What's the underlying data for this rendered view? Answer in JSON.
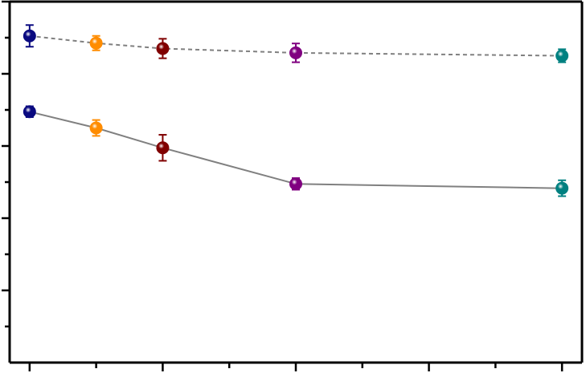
{
  "chart_data": {
    "type": "scatter",
    "title": "",
    "xlabel": "",
    "ylabel": "",
    "x_ticks_major": [
      0,
      10,
      20,
      30,
      40
    ],
    "x_ticks_minor": [
      5,
      15,
      25,
      35
    ],
    "xlim": [
      -1.5,
      41.5
    ],
    "ylim": [
      0,
      100
    ],
    "y_ticks_major": [
      20,
      40,
      60,
      80,
      100
    ],
    "y_ticks_minor": [
      10,
      30,
      50,
      70,
      90
    ],
    "grid": false,
    "legend": "none",
    "series": [
      {
        "line_style": "dashed",
        "line_color": "#808080",
        "points": [
          {
            "x": 0,
            "y": 90.5,
            "err": 3.0,
            "color": "#0a0a80"
          },
          {
            "x": 5,
            "y": 88.5,
            "err": 2.0,
            "color": "#ff8c00"
          },
          {
            "x": 10,
            "y": 87.0,
            "err": 2.7,
            "color": "#800000"
          },
          {
            "x": 20,
            "y": 85.8,
            "err": 2.6,
            "color": "#800080"
          },
          {
            "x": 40,
            "y": 85.0,
            "err": 1.8,
            "color": "#008080"
          }
        ]
      },
      {
        "line_style": "solid",
        "line_color": "#808080",
        "points": [
          {
            "x": 0,
            "y": 69.5,
            "err": 1.5,
            "color": "#0a0a80"
          },
          {
            "x": 5,
            "y": 65.0,
            "err": 2.2,
            "color": "#ff8c00"
          },
          {
            "x": 10,
            "y": 59.5,
            "err": 3.6,
            "color": "#800000"
          },
          {
            "x": 20,
            "y": 49.5,
            "err": 1.6,
            "color": "#800080"
          },
          {
            "x": 40,
            "y": 48.3,
            "err": 2.2,
            "color": "#008080"
          }
        ]
      }
    ]
  }
}
